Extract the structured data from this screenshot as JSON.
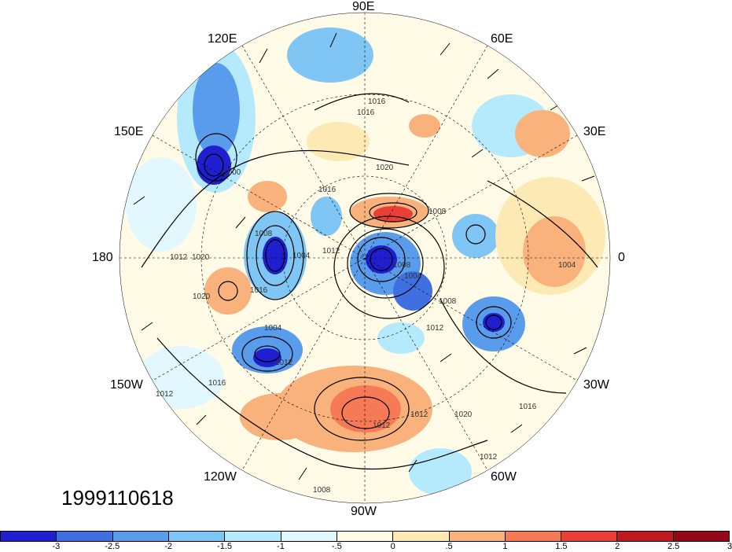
{
  "timestamp": "1999110618",
  "longitude_labels": {
    "lon_90e": "90E",
    "lon_120e": "120E",
    "lon_60e": "60E",
    "lon_150e": "150E",
    "lon_30e": "30E",
    "lon_180": "180",
    "lon_0": "0",
    "lon_150w": "150W",
    "lon_30w": "30W",
    "lon_120w": "120W",
    "lon_60w": "60W",
    "lon_90w": "90W"
  },
  "colorbar": {
    "colors": [
      "#1f1fd0",
      "#3f6fe0",
      "#5a9cec",
      "#80c6f4",
      "#b4eafc",
      "#e2f8fe",
      "#fffbe6",
      "#fde9b4",
      "#f9b27c",
      "#f57a55",
      "#e84036",
      "#c01820",
      "#960818"
    ],
    "ticks": [
      "-3",
      "-2.5",
      "-2",
      "-1.5",
      "-1",
      "-.5",
      "0",
      ".5",
      "1",
      "1.5",
      "2",
      "2.5",
      "3"
    ]
  },
  "contour_labels": [
    "1016",
    "1020",
    "1016",
    "1012",
    "1008",
    "1004",
    "1000",
    "1012",
    "1020",
    "1016",
    "1012",
    "1008",
    "1004",
    "1020",
    "1016",
    "1012",
    "1008",
    "1004",
    "1012",
    "1020",
    "1016",
    "1012",
    "1008",
    "1012",
    "1004",
    "1012",
    "1016",
    "1008"
  ]
}
